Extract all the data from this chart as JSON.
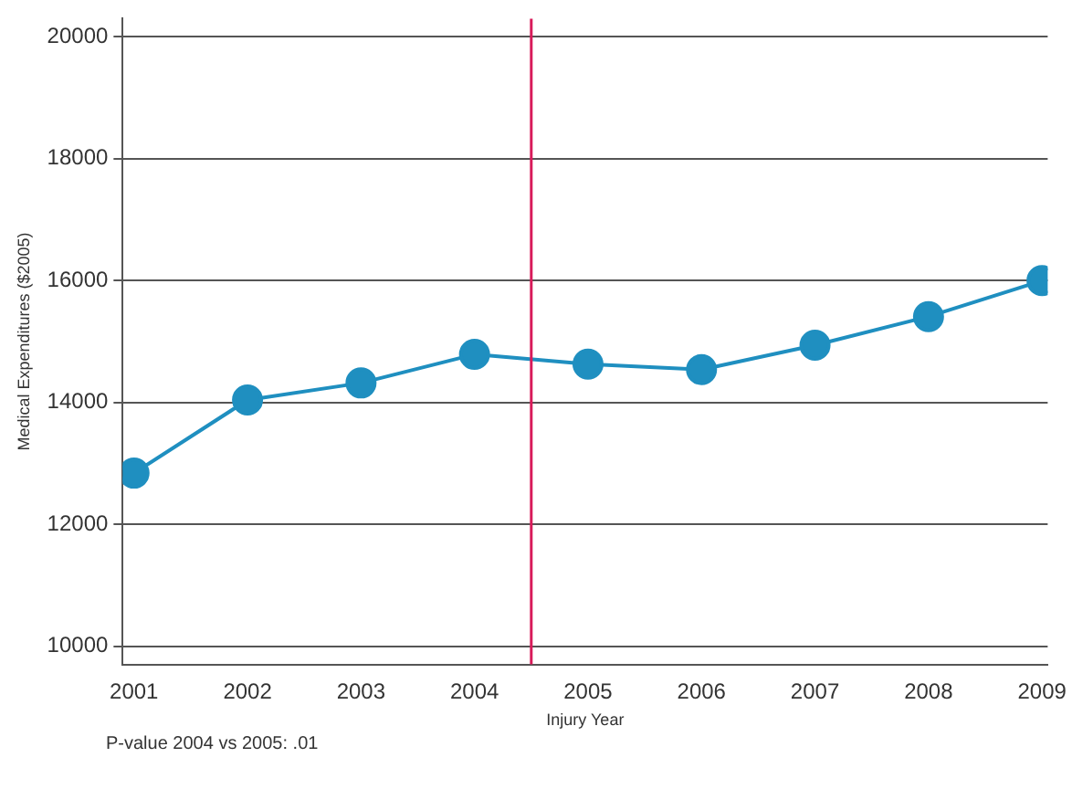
{
  "chart_data": {
    "type": "line",
    "xlabel": "Injury Year",
    "ylabel": "Medical Expenditures ($2005)",
    "x": [
      2001,
      2002,
      2003,
      2004,
      2005,
      2006,
      2007,
      2008,
      2009
    ],
    "series": [
      {
        "color": "#1f8fc0",
        "values": [
          12840,
          14040,
          14320,
          14790,
          14630,
          14540,
          14940,
          15410,
          16000
        ]
      }
    ],
    "xlim": [
      2000.9,
      2009.05
    ],
    "xticks": [
      2001,
      2002,
      2003,
      2004,
      2005,
      2006,
      2007,
      2008,
      2009
    ],
    "ylim": [
      9700,
      20300
    ],
    "yticks": [
      10000,
      12000,
      14000,
      16000,
      18000,
      20000
    ],
    "grid": "y",
    "legend": false,
    "marker": "circle",
    "line_style": "solid",
    "ref_lines": [
      {
        "axis": "x",
        "value": 2004.5,
        "color": "#d81b5a"
      }
    ],
    "annotations": [
      "P-value 2004 vs 2005: .01"
    ]
  }
}
